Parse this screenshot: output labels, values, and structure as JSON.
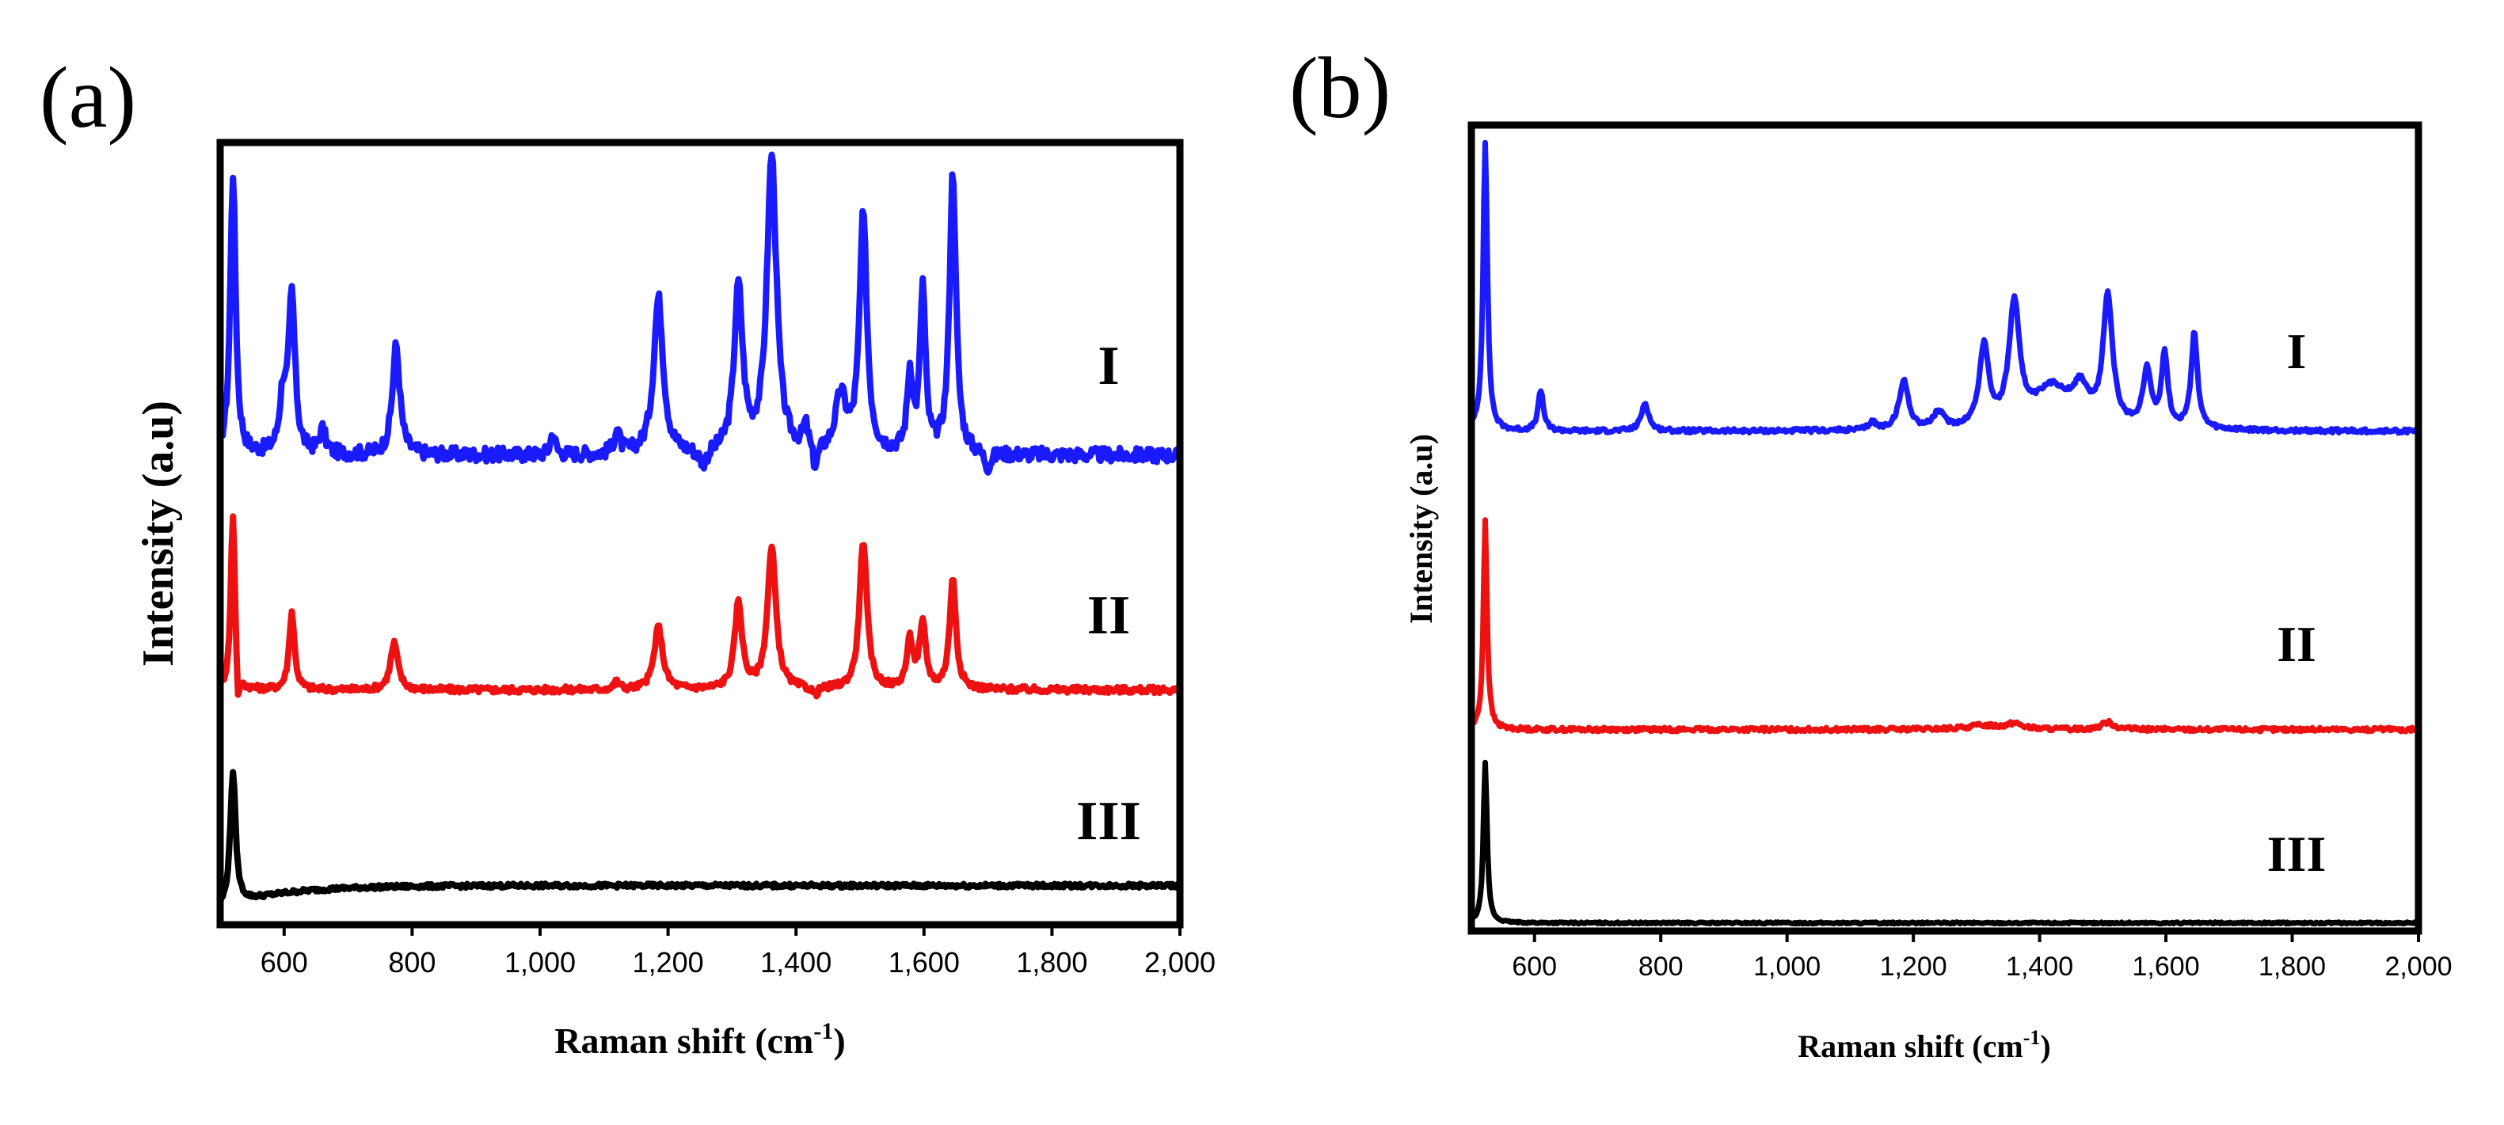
{
  "chart_data": [
    {
      "type": "line",
      "panel_label": "(a)",
      "xlabel": "Raman shift (cm",
      "xlabel_sup": "-1",
      "xlabel_end": ")",
      "ylabel": "Intensity (a.u)",
      "xlim": [
        500,
        2000
      ],
      "ylim": [
        0,
        100
      ],
      "xticks": [
        600,
        800,
        1000,
        1200,
        1400,
        1600,
        1800,
        2000
      ],
      "xtick_labels": [
        "600",
        "800",
        "1,000",
        "1,200",
        "1,400",
        "1,600",
        "1,800",
        "2,000"
      ],
      "yticks_shown": false,
      "series": [
        {
          "name": "I",
          "color": "#1a1aff",
          "baseline": 60,
          "noise": 0.9,
          "peaks": [
            [
              520,
              36,
              5
            ],
            [
              598,
              7,
              6
            ],
            [
              612,
              20,
              6
            ],
            [
              660,
              3,
              6
            ],
            [
              775,
              14,
              7
            ],
            [
              1020,
              3,
              4
            ],
            [
              1120,
              3,
              5
            ],
            [
              1185,
              20,
              9
            ],
            [
              1310,
              21,
              8
            ],
            [
              1362,
              38,
              9
            ],
            [
              1415,
              3,
              5
            ],
            [
              1470,
              7,
              10
            ],
            [
              1505,
              30,
              7
            ],
            [
              1578,
              10,
              5
            ],
            [
              1598,
              21,
              5
            ],
            [
              1645,
              36,
              6
            ]
          ],
          "dips": [
            [
              1255,
              2,
              8
            ],
            [
              1430,
              3,
              5
            ],
            [
              1700,
              2,
              6
            ]
          ]
        },
        {
          "name": "II",
          "color": "#ee1111",
          "baseline": 30,
          "noise": 0.4,
          "peaks": [
            [
              520,
              23,
              4
            ],
            [
              612,
              10,
              5
            ],
            [
              772,
              6,
              7
            ],
            [
              1120,
              1,
              5
            ],
            [
              1185,
              8,
              8
            ],
            [
              1310,
              11,
              7
            ],
            [
              1362,
              18,
              8
            ],
            [
              1505,
              19,
              7
            ],
            [
              1578,
              6,
              6
            ],
            [
              1598,
              8,
              6
            ],
            [
              1645,
              14,
              6
            ]
          ],
          "dips": [
            [
              1430,
              1,
              6
            ],
            [
              528,
              5,
              3
            ]
          ]
        },
        {
          "name": "III",
          "color": "#000000",
          "baseline": 5,
          "noise": 0.25,
          "peaks": [
            [
              520,
              17,
              5
            ]
          ],
          "rise": true
        }
      ]
    },
    {
      "type": "line",
      "panel_label": "(b)",
      "xlabel": "Raman shift (cm",
      "xlabel_sup": "-1",
      "xlabel_end": ")",
      "ylabel": "Intensity (a.u)",
      "xlim": [
        500,
        2000
      ],
      "ylim": [
        0,
        100
      ],
      "xticks": [
        600,
        800,
        1000,
        1200,
        1400,
        1600,
        1800,
        2000
      ],
      "xtick_labels": [
        "600",
        "800",
        "1,000",
        "1,200",
        "1,400",
        "1,600",
        "1,800",
        "2,000"
      ],
      "yticks_shown": false,
      "series": [
        {
          "name": "I",
          "color": "#1a1aff",
          "baseline": 62,
          "noise": 0.25,
          "peaks": [
            [
              522,
              36,
              4
            ],
            [
              610,
              5,
              5
            ],
            [
              775,
              3.5,
              7
            ],
            [
              1135,
              1,
              6
            ],
            [
              1185,
              6,
              9
            ],
            [
              1240,
              2,
              10
            ],
            [
              1312,
              10,
              9
            ],
            [
              1360,
              15,
              10
            ],
            [
              1420,
              5,
              35
            ],
            [
              1465,
              4,
              15
            ],
            [
              1508,
              16,
              9
            ],
            [
              1570,
              7,
              8
            ],
            [
              1598,
              9,
              6
            ],
            [
              1645,
              12,
              6
            ]
          ]
        },
        {
          "name": "II",
          "color": "#ee1111",
          "baseline": 25,
          "noise": 0.25,
          "peaks": [
            [
              522,
              26,
              3.5
            ],
            [
              1310,
              0.5,
              30
            ],
            [
              1360,
              0.7,
              15
            ],
            [
              1508,
              0.9,
              12
            ]
          ]
        },
        {
          "name": "III",
          "color": "#000000",
          "baseline": 1,
          "noise": 0.1,
          "peaks": [
            [
              522,
              20,
              3.5
            ]
          ]
        }
      ]
    }
  ]
}
